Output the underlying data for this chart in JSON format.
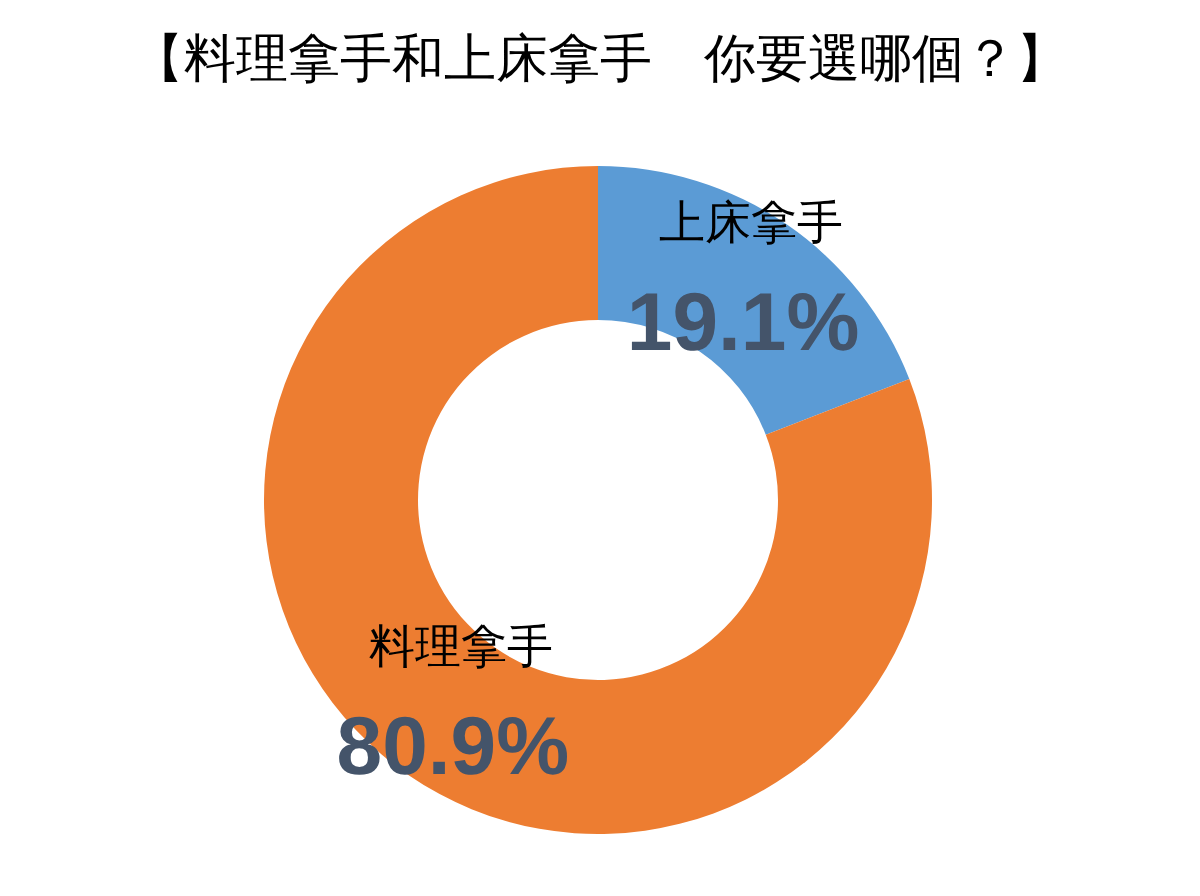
{
  "chart_data": {
    "type": "donut",
    "title": "【料理拿手和上床拿手　你要選哪個？】",
    "categories": [
      "上床拿手",
      "料理拿手"
    ],
    "values": [
      19.1,
      80.9
    ],
    "colors": [
      "#5b9bd5",
      "#ed7d31"
    ],
    "value_labels": [
      "19.1%",
      "80.9%"
    ]
  }
}
